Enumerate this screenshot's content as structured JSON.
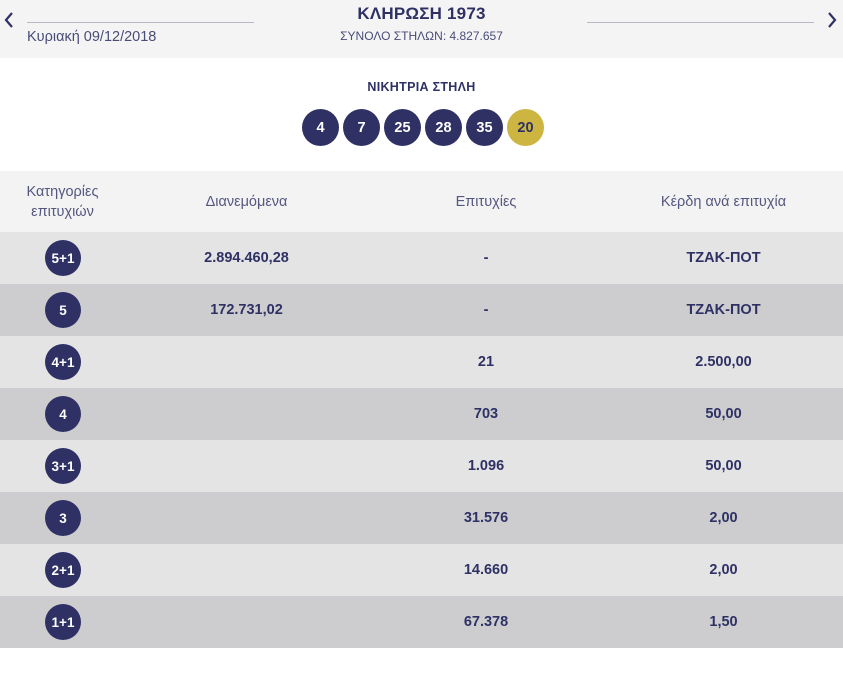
{
  "header": {
    "date": "Κυριακή 09/12/2018",
    "title": "ΚΛΗΡΩΣΗ 1973",
    "columns_total": "ΣΥΝΟΛΟ ΣΤΗΛΩΝ: 4.827.657",
    "prev_icon": "chevron-left-icon",
    "next_icon": "chevron-right-icon"
  },
  "winning": {
    "label": "ΝΙΚΗΤΡΙΑ ΣΤΗΛΗ",
    "numbers": [
      "4",
      "7",
      "25",
      "28",
      "35"
    ],
    "bonus": "20"
  },
  "table": {
    "headers": {
      "category_line1": "Κατηγορίες",
      "category_line2": "επιτυχιών",
      "distributed": "Διανεμόμενα",
      "wins": "Επιτυχίες",
      "prize_per_win": "Κέρδη ανά επιτυχία"
    },
    "rows": [
      {
        "category": "5+1",
        "distributed": "2.894.460,28",
        "wins": "-",
        "prize": "ΤΖΑΚ-ΠΟΤ"
      },
      {
        "category": "5",
        "distributed": "172.731,02",
        "wins": "-",
        "prize": "ΤΖΑΚ-ΠΟΤ"
      },
      {
        "category": "4+1",
        "distributed": "",
        "wins": "21",
        "prize": "2.500,00"
      },
      {
        "category": "4",
        "distributed": "",
        "wins": "703",
        "prize": "50,00"
      },
      {
        "category": "3+1",
        "distributed": "",
        "wins": "1.096",
        "prize": "50,00"
      },
      {
        "category": "3",
        "distributed": "",
        "wins": "31.576",
        "prize": "2,00"
      },
      {
        "category": "2+1",
        "distributed": "",
        "wins": "14.660",
        "prize": "2,00"
      },
      {
        "category": "1+1",
        "distributed": "",
        "wins": "67.378",
        "prize": "1,50"
      }
    ]
  },
  "colors": {
    "navy": "#2f3165",
    "gold": "#cdb542",
    "row_light": "#e4e4e5",
    "row_dark": "#cdcdd0"
  }
}
